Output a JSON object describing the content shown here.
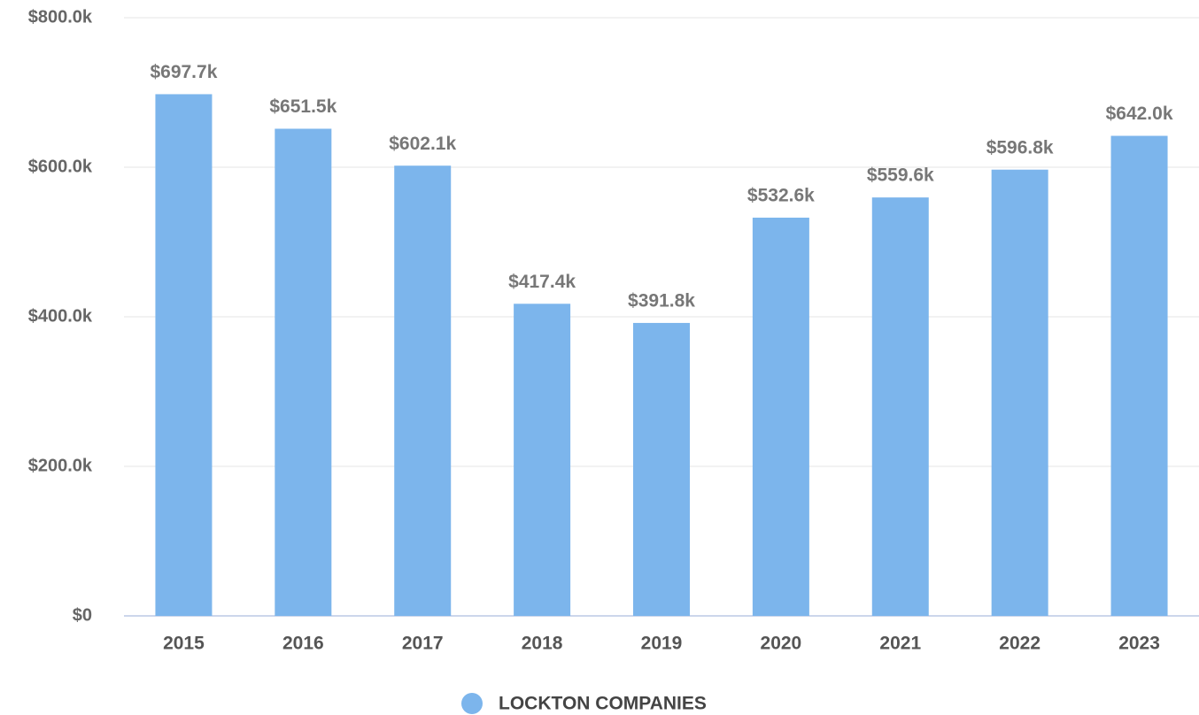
{
  "chart_data": {
    "type": "bar",
    "categories": [
      "2015",
      "2016",
      "2017",
      "2018",
      "2019",
      "2020",
      "2021",
      "2022",
      "2023"
    ],
    "series": [
      {
        "name": "LOCKTON COMPANIES",
        "color": "#7cb5ec",
        "values": [
          697700,
          651500,
          602100,
          417400,
          391800,
          532600,
          559600,
          596800,
          642000
        ],
        "value_labels": [
          "$697.7k",
          "$651.5k",
          "$602.1k",
          "$417.4k",
          "$391.8k",
          "$532.6k",
          "$559.6k",
          "$596.8k",
          "$642.0k"
        ]
      }
    ],
    "ylim": [
      0,
      800000
    ],
    "yticks": [
      {
        "value": 0,
        "label": "$0"
      },
      {
        "value": 200000,
        "label": "$200.0k"
      },
      {
        "value": 400000,
        "label": "$400.0k"
      },
      {
        "value": 600000,
        "label": "$600.0k"
      },
      {
        "value": 800000,
        "label": "$800.0k"
      }
    ],
    "grid": true,
    "legend": "bottom"
  }
}
